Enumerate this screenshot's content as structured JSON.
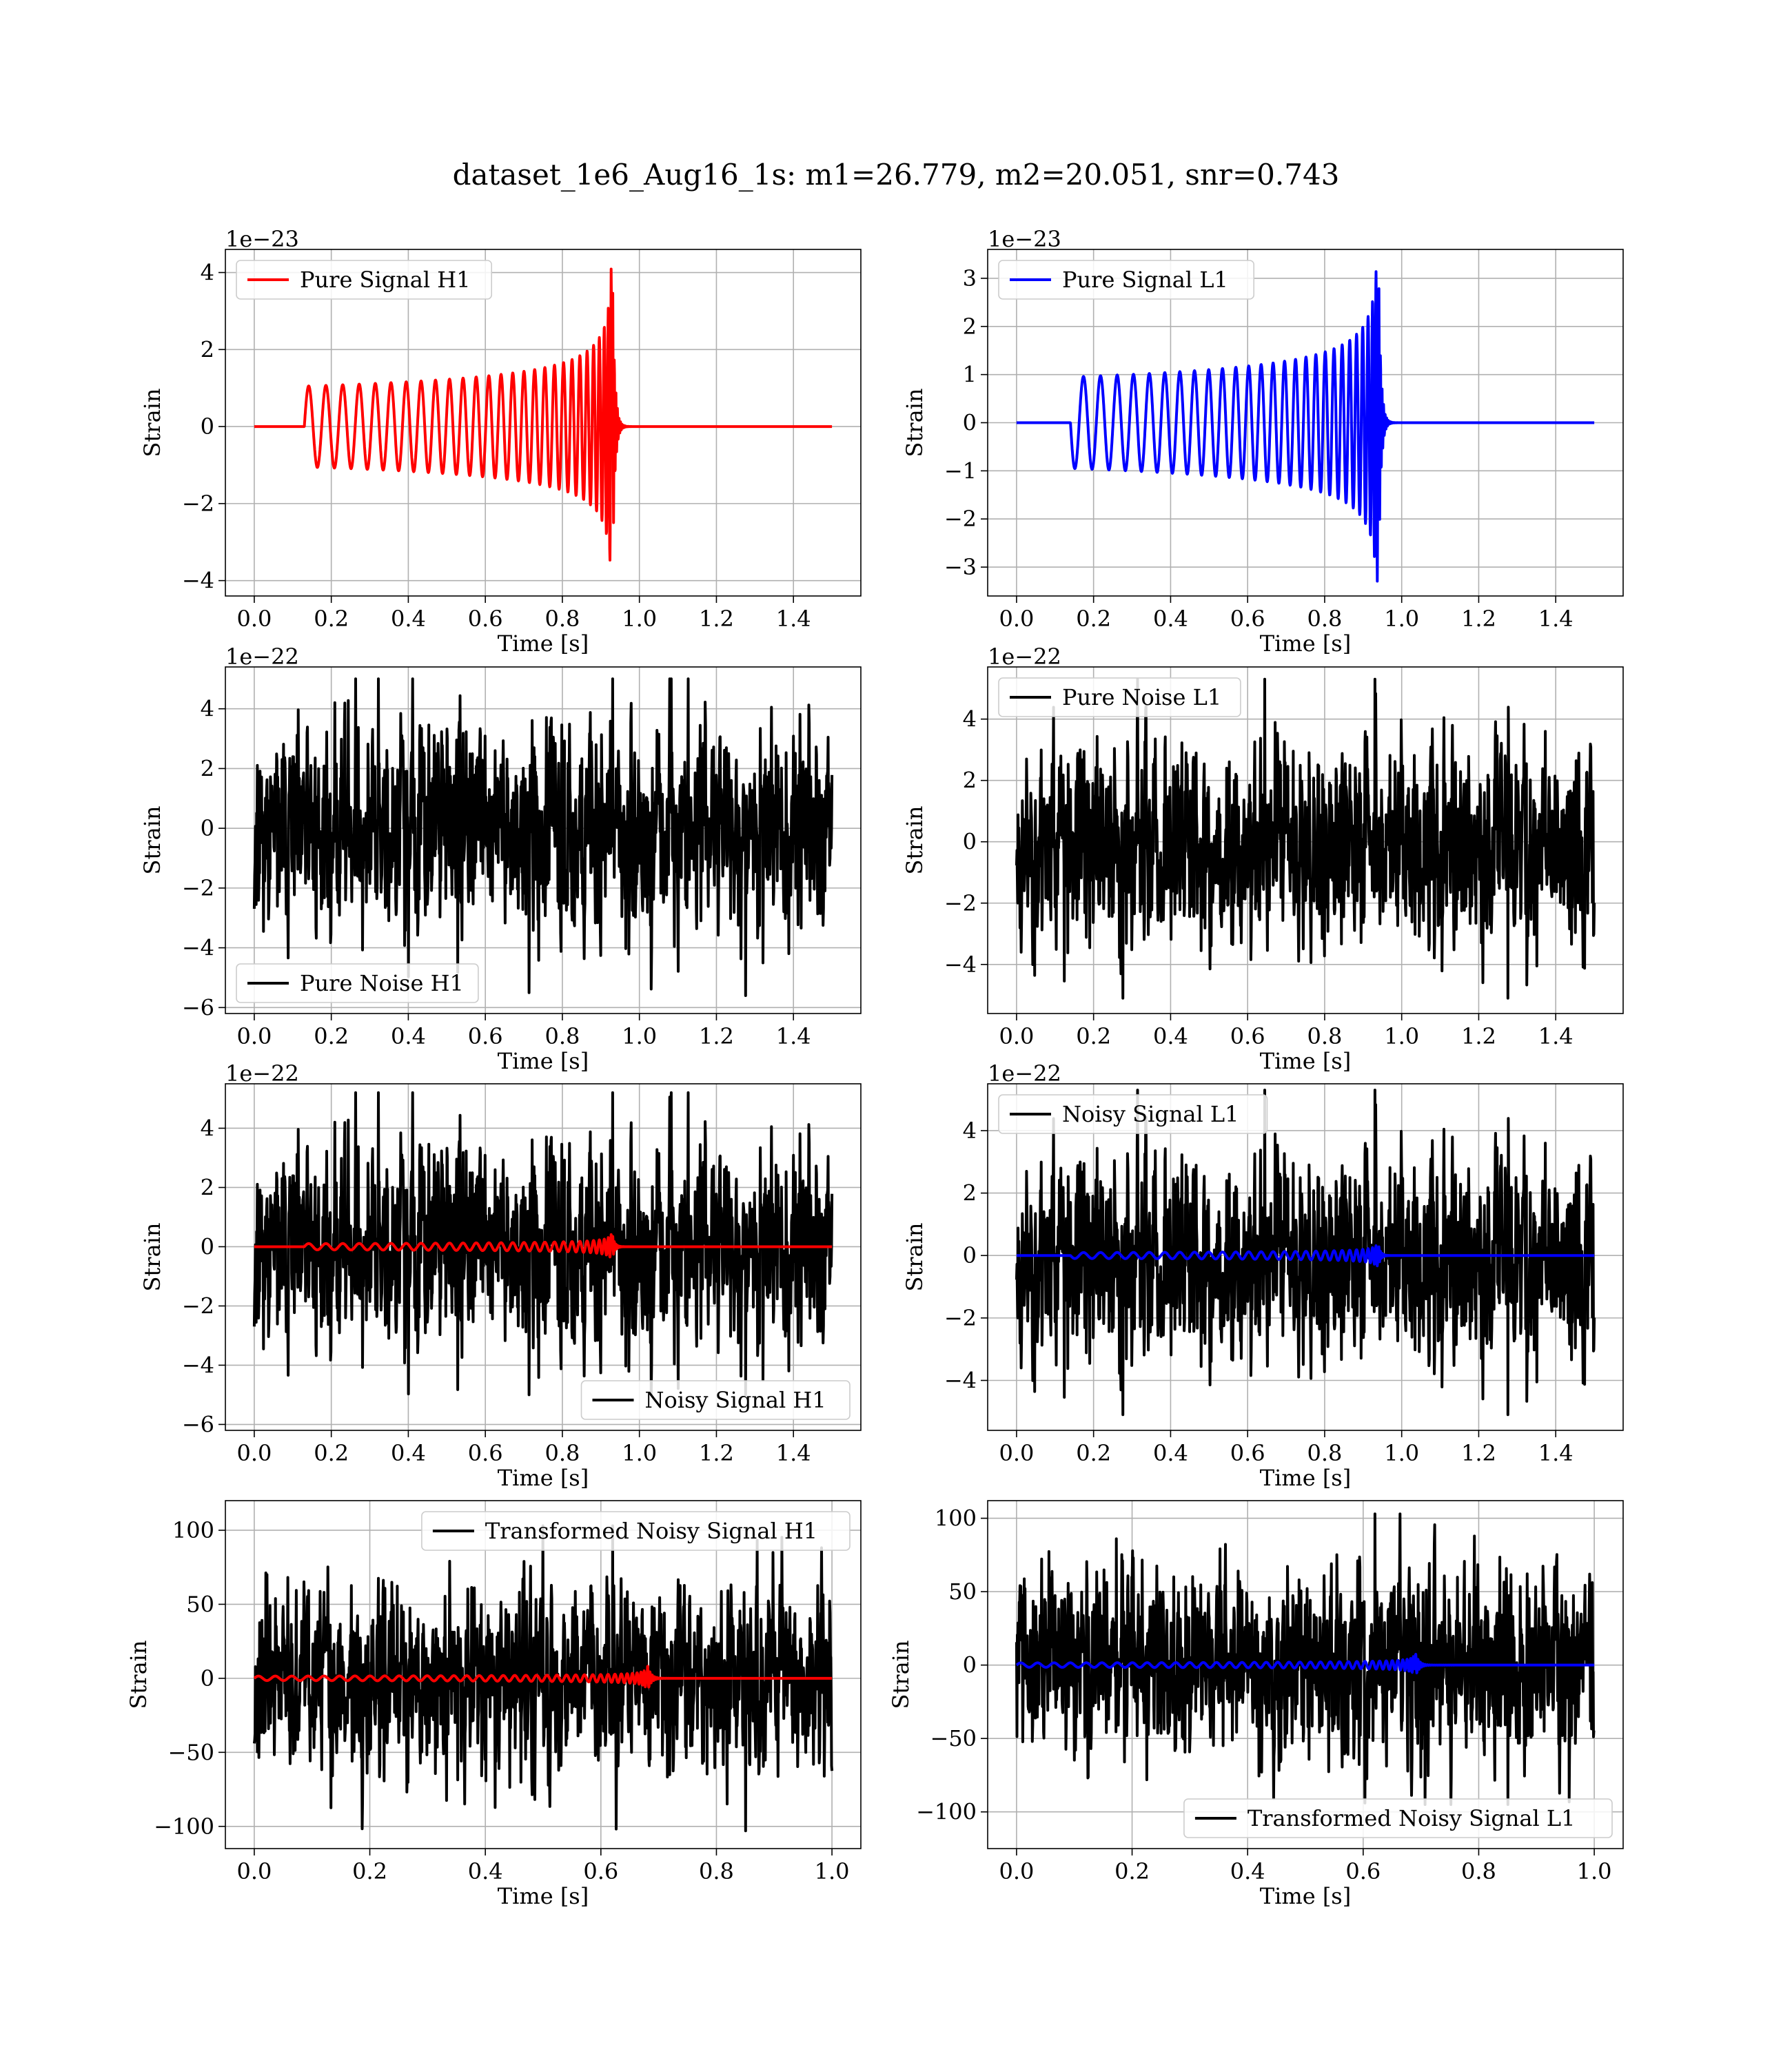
{
  "title": "dataset_1e6_Aug16_1s: m1=26.779, m2=20.051, snr=0.743",
  "colors": {
    "h1_signal": "#ff0000",
    "l1_signal": "#0000ff",
    "noise": "#000000"
  },
  "chart_data": [
    {
      "id": "pure-signal-h1",
      "type": "line",
      "xlabel": "Time [s]",
      "ylabel": "Strain",
      "offset_text": "1e−23",
      "xlim": [
        -0.075,
        1.575
      ],
      "ylim": [
        -4.4,
        4.6
      ],
      "xticks": [
        0.0,
        0.2,
        0.4,
        0.6,
        0.8,
        1.0,
        1.2,
        1.4
      ],
      "xtick_labels": [
        "0.0",
        "0.2",
        "0.4",
        "0.6",
        "0.8",
        "1.0",
        "1.2",
        "1.4"
      ],
      "yticks": [
        -4,
        -2,
        0,
        2,
        4
      ],
      "ytick_labels": [
        "−4",
        "−2",
        "0",
        "2",
        "4"
      ],
      "legend": {
        "position": "upper-left",
        "entries": [
          "Pure Signal H1"
        ]
      },
      "series": [
        {
          "name": "Pure Signal H1",
          "kind": "chirp",
          "color": "#ff0000",
          "t0": 0.0,
          "t_end": 1.5,
          "t_start": 0.13,
          "t_merge": 0.93,
          "amp": 1.05,
          "peak": 4.1,
          "f0": 22,
          "tau": 0.8
        }
      ]
    },
    {
      "id": "pure-signal-l1",
      "type": "line",
      "xlabel": "Time [s]",
      "ylabel": "Strain",
      "offset_text": "1e−23",
      "xlim": [
        -0.075,
        1.575
      ],
      "ylim": [
        -3.6,
        3.6
      ],
      "xticks": [
        0.0,
        0.2,
        0.4,
        0.6,
        0.8,
        1.0,
        1.2,
        1.4
      ],
      "xtick_labels": [
        "0.0",
        "0.2",
        "0.4",
        "0.6",
        "0.8",
        "1.0",
        "1.2",
        "1.4"
      ],
      "yticks": [
        -3,
        -2,
        -1,
        0,
        1,
        2,
        3
      ],
      "ytick_labels": [
        "−3",
        "−2",
        "−1",
        "0",
        "1",
        "2",
        "3"
      ],
      "legend": {
        "position": "upper-left",
        "entries": [
          "Pure Signal L1"
        ]
      },
      "series": [
        {
          "name": "Pure Signal L1",
          "kind": "chirp",
          "color": "#0000ff",
          "t0": 0.0,
          "t_end": 1.5,
          "t_start": 0.14,
          "t_merge": 0.94,
          "amp": 0.95,
          "peak": 3.3,
          "f0": 22,
          "tau": 0.8,
          "sign": -1
        }
      ]
    },
    {
      "id": "pure-noise-h1",
      "type": "line",
      "xlabel": "Time [s]",
      "ylabel": "Strain",
      "offset_text": "1e−22",
      "xlim": [
        -0.075,
        1.575
      ],
      "ylim": [
        -6.2,
        5.4
      ],
      "xticks": [
        0.0,
        0.2,
        0.4,
        0.6,
        0.8,
        1.0,
        1.2,
        1.4
      ],
      "xtick_labels": [
        "0.0",
        "0.2",
        "0.4",
        "0.6",
        "0.8",
        "1.0",
        "1.2",
        "1.4"
      ],
      "yticks": [
        -6,
        -4,
        -2,
        0,
        2,
        4
      ],
      "ytick_labels": [
        "−6",
        "−4",
        "−2",
        "0",
        "2",
        "4"
      ],
      "legend": {
        "position": "lower-left",
        "entries": [
          "Pure Noise H1"
        ]
      },
      "series": [
        {
          "name": "Pure Noise H1",
          "kind": "noise",
          "color": "#000000",
          "t0": 0.0,
          "t_end": 1.5,
          "sigma": 1.5,
          "max": 5.0,
          "min": -5.6,
          "seed": 11
        }
      ]
    },
    {
      "id": "pure-noise-l1",
      "type": "line",
      "xlabel": "Time [s]",
      "ylabel": "Strain",
      "offset_text": "1e−22",
      "xlim": [
        -0.075,
        1.575
      ],
      "ylim": [
        -5.6,
        5.7
      ],
      "xticks": [
        0.0,
        0.2,
        0.4,
        0.6,
        0.8,
        1.0,
        1.2,
        1.4
      ],
      "xtick_labels": [
        "0.0",
        "0.2",
        "0.4",
        "0.6",
        "0.8",
        "1.0",
        "1.2",
        "1.4"
      ],
      "yticks": [
        -4,
        -2,
        0,
        2,
        4
      ],
      "ytick_labels": [
        "−4",
        "−2",
        "0",
        "2",
        "4"
      ],
      "legend": {
        "position": "upper-left",
        "entries": [
          "Pure Noise L1"
        ]
      },
      "series": [
        {
          "name": "Pure Noise L1",
          "kind": "noise",
          "color": "#000000",
          "t0": 0.0,
          "t_end": 1.5,
          "sigma": 1.5,
          "max": 5.3,
          "min": -5.1,
          "seed": 23
        }
      ]
    },
    {
      "id": "noisy-signal-h1",
      "type": "line",
      "xlabel": "Time [s]",
      "ylabel": "Strain",
      "offset_text": "1e−22",
      "xlim": [
        -0.075,
        1.575
      ],
      "ylim": [
        -6.2,
        5.5
      ],
      "xticks": [
        0.0,
        0.2,
        0.4,
        0.6,
        0.8,
        1.0,
        1.2,
        1.4
      ],
      "xtick_labels": [
        "0.0",
        "0.2",
        "0.4",
        "0.6",
        "0.8",
        "1.0",
        "1.2",
        "1.4"
      ],
      "yticks": [
        -6,
        -4,
        -2,
        0,
        2,
        4
      ],
      "ytick_labels": [
        "−6",
        "−4",
        "−2",
        "0",
        "2",
        "4"
      ],
      "legend": {
        "position": "lower-right",
        "entries": [
          "Noisy Signal H1"
        ]
      },
      "series": [
        {
          "name": "Noisy Signal H1",
          "kind": "noise",
          "color": "#000000",
          "t0": 0.0,
          "t_end": 1.5,
          "sigma": 1.5,
          "max": 5.2,
          "min": -5.0,
          "seed": 11
        },
        {
          "kind": "chirp",
          "color": "#ff0000",
          "t0": 0.0,
          "t_end": 1.5,
          "t_start": 0.13,
          "t_merge": 0.93,
          "amp": 0.105,
          "peak": 0.41,
          "f0": 22,
          "tau": 0.8
        }
      ]
    },
    {
      "id": "noisy-signal-l1",
      "type": "line",
      "xlabel": "Time [s]",
      "ylabel": "Strain",
      "offset_text": "1e−22",
      "xlim": [
        -0.075,
        1.575
      ],
      "ylim": [
        -5.6,
        5.5
      ],
      "xticks": [
        0.0,
        0.2,
        0.4,
        0.6,
        0.8,
        1.0,
        1.2,
        1.4
      ],
      "xtick_labels": [
        "0.0",
        "0.2",
        "0.4",
        "0.6",
        "0.8",
        "1.0",
        "1.2",
        "1.4"
      ],
      "yticks": [
        -4,
        -2,
        0,
        2,
        4
      ],
      "ytick_labels": [
        "−4",
        "−2",
        "0",
        "2",
        "4"
      ],
      "legend": {
        "position": "upper-left",
        "entries": [
          "Noisy Signal L1"
        ]
      },
      "series": [
        {
          "name": "Noisy Signal L1",
          "kind": "noise",
          "color": "#000000",
          "t0": 0.0,
          "t_end": 1.5,
          "sigma": 1.5,
          "max": 5.3,
          "min": -5.1,
          "seed": 23
        },
        {
          "kind": "chirp",
          "color": "#0000ff",
          "t0": 0.0,
          "t_end": 1.5,
          "t_start": 0.14,
          "t_merge": 0.94,
          "amp": 0.095,
          "peak": 0.33,
          "f0": 22,
          "tau": 0.8,
          "sign": -1
        }
      ]
    },
    {
      "id": "transformed-noisy-signal-h1",
      "type": "line",
      "xlabel": "Time [s]",
      "ylabel": "Strain",
      "offset_text": "",
      "xlim": [
        -0.05,
        1.05
      ],
      "ylim": [
        -115,
        120
      ],
      "xticks": [
        0.0,
        0.2,
        0.4,
        0.6,
        0.8,
        1.0
      ],
      "xtick_labels": [
        "0.0",
        "0.2",
        "0.4",
        "0.6",
        "0.8",
        "1.0"
      ],
      "yticks": [
        -100,
        -50,
        0,
        50,
        100
      ],
      "ytick_labels": [
        "−100",
        "−50",
        "0",
        "50",
        "100"
      ],
      "legend": {
        "position": "upper-right",
        "entries": [
          "Transformed Noisy Signal H1"
        ]
      },
      "series": [
        {
          "name": "Transformed Noisy Signal H1",
          "kind": "noise",
          "color": "#000000",
          "t0": 0.0,
          "t_end": 1.0,
          "sigma": 28,
          "max": 103,
          "min": -103,
          "seed": 37
        },
        {
          "kind": "chirp",
          "color": "#ff0000",
          "t0": 0.0,
          "t_end": 1.0,
          "t_start": 0.0,
          "t_merge": 0.68,
          "amp": 1.5,
          "peak": 10,
          "f0": 34,
          "tau": 0.68,
          "lead": false
        }
      ]
    },
    {
      "id": "transformed-noisy-signal-l1",
      "type": "line",
      "xlabel": "Time [s]",
      "ylabel": "Strain",
      "offset_text": "",
      "xlim": [
        -0.05,
        1.05
      ],
      "ylim": [
        -125,
        112
      ],
      "xticks": [
        0.0,
        0.2,
        0.4,
        0.6,
        0.8,
        1.0
      ],
      "xtick_labels": [
        "0.0",
        "0.2",
        "0.4",
        "0.6",
        "0.8",
        "1.0"
      ],
      "yticks": [
        -100,
        -50,
        0,
        50,
        100
      ],
      "ytick_labels": [
        "−100",
        "−50",
        "0",
        "50",
        "100"
      ],
      "legend": {
        "position": "lower-right",
        "entries": [
          "Transformed Noisy Signal L1"
        ]
      },
      "series": [
        {
          "name": "Transformed Noisy Signal L1",
          "kind": "noise",
          "color": "#000000",
          "t0": 0.0,
          "t_end": 1.0,
          "sigma": 28,
          "max": 103,
          "min": -95,
          "seed": 41
        },
        {
          "kind": "chirp",
          "color": "#0000ff",
          "t0": 0.0,
          "t_end": 1.0,
          "t_start": 0.0,
          "t_merge": 0.69,
          "amp": 1.5,
          "peak": 9,
          "f0": 34,
          "tau": 0.69,
          "lead": false
        }
      ]
    }
  ]
}
